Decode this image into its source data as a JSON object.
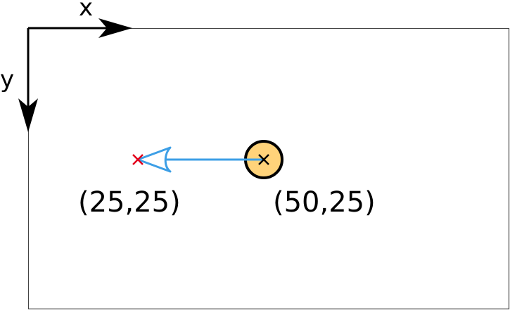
{
  "axes": {
    "x_label": "x",
    "y_label": "y"
  },
  "points": {
    "target": {
      "label": "(25,25)",
      "marker": "x-mark",
      "color": "#e3001b"
    },
    "current": {
      "label": "(50,25)",
      "marker": "x-mark",
      "fill_color": "#ffd37a",
      "outline_color": "#000000"
    }
  },
  "motion_arrow": {
    "color": "#3d9fe6",
    "direction": "left"
  }
}
